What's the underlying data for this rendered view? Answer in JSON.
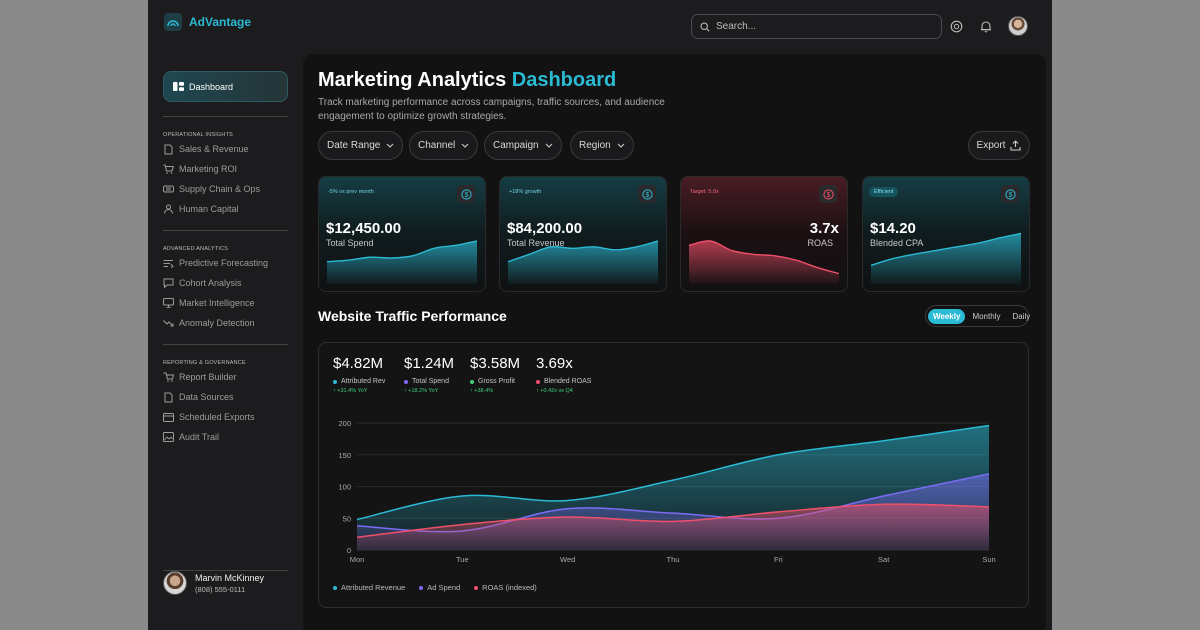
{
  "app": {
    "name": "AdVantage",
    "accent": "#2bbad4"
  },
  "header": {
    "search_placeholder": "Search..."
  },
  "sidebar": {
    "active": {
      "label": "Dashboard",
      "icon": "dashboard-icon"
    },
    "sections": [
      {
        "title": "OPERATIONAL INSIGHTS",
        "items": [
          {
            "label": "Sales & Revenue",
            "icon": "document-icon"
          },
          {
            "label": "Marketing ROI",
            "icon": "cart-icon"
          },
          {
            "label": "Supply Chain & Ops",
            "icon": "truck-icon"
          },
          {
            "label": "Human Capital",
            "icon": "users-icon"
          }
        ]
      },
      {
        "title": "ADVANCED ANALYTICS",
        "items": [
          {
            "label": "Predictive Forecasting",
            "icon": "forecast-icon"
          },
          {
            "label": "Cohort Analysis",
            "icon": "chat-icon"
          },
          {
            "label": "Market Intelligence",
            "icon": "monitor-icon"
          },
          {
            "label": "Anomaly Detection",
            "icon": "trend-down-icon"
          }
        ]
      },
      {
        "title": "REPORTING & GOVERNANCE",
        "items": [
          {
            "label": "Report Builder",
            "icon": "builder-icon"
          },
          {
            "label": "Data Sources",
            "icon": "document-icon"
          },
          {
            "label": "Scheduled Exports",
            "icon": "calendar-icon"
          },
          {
            "label": "Audit Trail",
            "icon": "image-icon"
          }
        ]
      }
    ]
  },
  "profile": {
    "name": "Marvin McKinney",
    "phone": "(808) 555-0111"
  },
  "page": {
    "title": "Marketing Analytics",
    "title_accent": "Dashboard",
    "subtitle": "Track marketing performance across campaigns, traffic sources, and audience engagement to optimize growth strategies."
  },
  "filters": [
    {
      "label": "Date Range"
    },
    {
      "label": "Channel"
    },
    {
      "label": "Campaign"
    },
    {
      "label": "Region"
    }
  ],
  "export_label": "Export",
  "kpi_cards": [
    {
      "badge": "-5% vs prev month",
      "value": "$12,450.00",
      "label": "Total Spend",
      "theme": "teal",
      "trend": [
        30,
        32,
        36,
        35,
        38,
        48,
        52,
        58
      ]
    },
    {
      "badge": "+18% growth",
      "value": "$84,200.00",
      "label": "Total Revenue",
      "theme": "teal",
      "trend": [
        30,
        40,
        50,
        48,
        50,
        46,
        50,
        58
      ]
    },
    {
      "badge": "Target: 5.0x",
      "value": "3.7x",
      "label": "ROAS",
      "theme": "red",
      "trend": [
        52,
        58,
        45,
        40,
        38,
        32,
        22,
        14
      ]
    },
    {
      "badge": "Efficient",
      "value": "$14.20",
      "label": "Blended CPA",
      "theme": "teal",
      "trend": [
        25,
        34,
        40,
        45,
        50,
        55,
        62,
        68
      ]
    }
  ],
  "traffic": {
    "title": "Website Traffic Performance",
    "tabs": [
      {
        "label": "Weekly",
        "active": true
      },
      {
        "label": "Monthly",
        "active": false
      },
      {
        "label": "Daily",
        "active": false
      }
    ],
    "metrics": [
      {
        "value": "$4.82M",
        "label": "Attributed Rev",
        "delta": "↑ +31.4% YoY",
        "color": "#2bbad4"
      },
      {
        "value": "$1.24M",
        "label": "Total Spend",
        "delta": "↑ +18.2% YoY",
        "color": "#7b6cf6"
      },
      {
        "value": "$3.58M",
        "label": "Gross Profit",
        "delta": "↑ +38.4%",
        "color": "#3fd07a"
      },
      {
        "value": "3.69x",
        "label": "Blended ROAS",
        "delta": "↑ +0.42x vs Q4",
        "color": "#f0506a"
      }
    ]
  },
  "chart_data": {
    "type": "area",
    "x": [
      "Mon",
      "Tue",
      "Wed",
      "Thu",
      "Fri",
      "Sat",
      "Sun"
    ],
    "yticks": [
      0,
      50,
      100,
      150,
      200
    ],
    "ylim": [
      0,
      200
    ],
    "grid": true,
    "legend": "bottom-left",
    "series": [
      {
        "name": "Attributed Revenue",
        "color": "#2bbad4",
        "values": [
          48,
          85,
          78,
          110,
          150,
          172,
          196
        ]
      },
      {
        "name": "Ad Spend",
        "color": "#7b6cf6",
        "values": [
          38,
          30,
          65,
          58,
          50,
          85,
          120
        ]
      },
      {
        "name": "ROAS (indexed)",
        "color": "#f0506a",
        "values": [
          20,
          40,
          52,
          45,
          60,
          72,
          68
        ]
      }
    ]
  }
}
